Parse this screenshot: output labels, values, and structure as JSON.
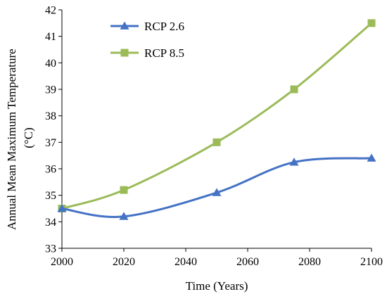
{
  "chart_data": {
    "type": "line",
    "xlabel": "Time (Years)",
    "ylabel": [
      "Annual Mean Maximum Temperature",
      "(°C)"
    ],
    "xlim": [
      2000,
      2100
    ],
    "ylim": [
      33,
      42
    ],
    "xticks": [
      2000,
      2020,
      2040,
      2060,
      2080,
      2100
    ],
    "yticks": [
      33,
      34,
      35,
      36,
      37,
      38,
      39,
      40,
      41,
      42
    ],
    "grid": false,
    "legend_position": "top-left",
    "series": [
      {
        "name": "RCP 2.6",
        "color": "#4472c4",
        "marker": "triangle",
        "points": [
          {
            "x": 2000,
            "y": 34.5
          },
          {
            "x": 2020,
            "y": 34.2
          },
          {
            "x": 2050,
            "y": 35.1
          },
          {
            "x": 2075,
            "y": 36.25
          },
          {
            "x": 2100,
            "y": 36.4
          }
        ]
      },
      {
        "name": "RCP 8.5",
        "color": "#9bbb59",
        "marker": "square",
        "points": [
          {
            "x": 2000,
            "y": 34.5
          },
          {
            "x": 2020,
            "y": 35.2
          },
          {
            "x": 2050,
            "y": 37.0
          },
          {
            "x": 2075,
            "y": 39.0
          },
          {
            "x": 2100,
            "y": 41.5
          }
        ]
      }
    ]
  }
}
